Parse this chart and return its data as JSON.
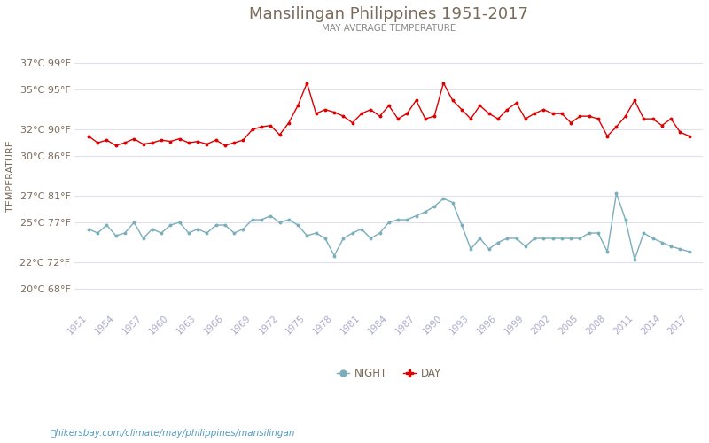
{
  "title": "Mansilingan Philippines 1951-2017",
  "subtitle": "MAY AVERAGE TEMPERATURE",
  "ylabel": "TEMPERATURE",
  "footer": "hikersbay.com/climate/may/philippines/mansilingan",
  "years": [
    1951,
    1952,
    1953,
    1954,
    1955,
    1956,
    1957,
    1958,
    1959,
    1960,
    1961,
    1962,
    1963,
    1964,
    1965,
    1966,
    1967,
    1968,
    1969,
    1970,
    1971,
    1972,
    1973,
    1974,
    1975,
    1976,
    1977,
    1978,
    1979,
    1980,
    1981,
    1982,
    1983,
    1984,
    1985,
    1986,
    1987,
    1988,
    1989,
    1990,
    1991,
    1992,
    1993,
    1994,
    1995,
    1996,
    1997,
    1998,
    1999,
    2000,
    2001,
    2002,
    2003,
    2004,
    2005,
    2006,
    2007,
    2008,
    2009,
    2010,
    2011,
    2012,
    2013,
    2014,
    2015,
    2016,
    2017
  ],
  "day_temps": [
    31.5,
    31.0,
    31.2,
    30.8,
    31.0,
    31.3,
    30.9,
    31.0,
    31.2,
    31.1,
    31.3,
    31.0,
    31.1,
    30.9,
    31.2,
    30.8,
    31.0,
    31.2,
    32.0,
    32.2,
    32.3,
    31.6,
    32.5,
    33.8,
    35.5,
    33.2,
    33.5,
    33.3,
    33.0,
    32.5,
    33.2,
    33.5,
    33.0,
    33.8,
    32.8,
    33.2,
    34.2,
    32.8,
    33.0,
    35.5,
    34.2,
    33.5,
    32.8,
    33.8,
    33.2,
    32.8,
    33.5,
    34.0,
    32.8,
    33.2,
    33.5,
    33.2,
    33.2,
    32.5,
    33.0,
    33.0,
    32.8,
    31.5,
    32.2,
    33.0,
    34.2,
    32.8,
    32.8,
    32.3,
    32.8,
    31.8,
    31.5
  ],
  "night_temps": [
    24.5,
    24.2,
    24.8,
    24.0,
    24.2,
    25.0,
    23.8,
    24.5,
    24.2,
    24.8,
    25.0,
    24.2,
    24.5,
    24.2,
    24.8,
    24.8,
    24.2,
    24.5,
    25.2,
    25.2,
    25.5,
    25.0,
    25.2,
    24.8,
    24.0,
    24.2,
    23.8,
    22.5,
    23.8,
    24.2,
    24.5,
    23.8,
    24.2,
    25.0,
    25.2,
    25.2,
    25.5,
    25.8,
    26.2,
    26.8,
    26.5,
    24.8,
    23.0,
    23.8,
    23.0,
    23.5,
    23.8,
    23.8,
    23.2,
    23.8,
    23.8,
    23.8,
    23.8,
    23.8,
    23.8,
    24.2,
    24.2,
    22.8,
    27.2,
    25.2,
    22.2,
    24.2,
    23.8,
    23.5,
    23.2,
    23.0,
    22.8
  ],
  "day_color": "#dd0000",
  "night_color": "#7aaebb",
  "title_color": "#7a6a5a",
  "subtitle_color": "#888888",
  "axis_label_color": "#7a6a5a",
  "tick_color": "#aaaacc",
  "grid_color": "#e0e0ee",
  "footer_color": "#5599bb",
  "background_color": "#ffffff",
  "yticks_c": [
    20,
    22,
    25,
    27,
    30,
    32,
    35,
    37
  ],
  "yticks_f": [
    68,
    72,
    77,
    81,
    86,
    90,
    95,
    99
  ],
  "ylim": [
    18.5,
    38.5
  ],
  "xlim": [
    1949.5,
    2018.5
  ],
  "xticks": [
    1951,
    1954,
    1957,
    1960,
    1963,
    1966,
    1969,
    1972,
    1975,
    1978,
    1981,
    1984,
    1987,
    1990,
    1993,
    1996,
    1999,
    2002,
    2005,
    2008,
    2011,
    2014,
    2017
  ]
}
